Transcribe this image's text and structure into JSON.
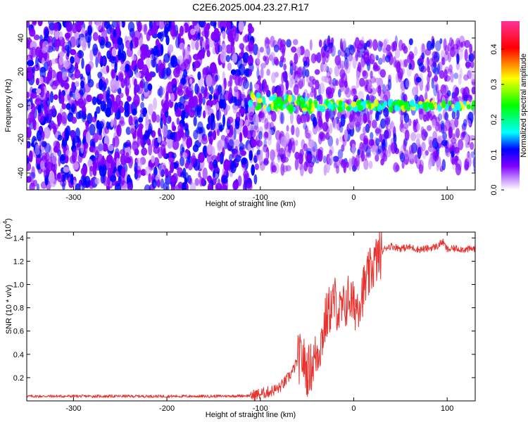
{
  "chart_data": [
    {
      "type": "heatmap",
      "title": "C2E6.2025.004.23.27.R17",
      "xlabel": "Height of straight line (km)",
      "ylabel": "Frequency (Hz)",
      "xlim": [
        -350,
        130
      ],
      "ylim": [
        -50,
        50
      ],
      "xticks": [
        -300,
        -200,
        -100,
        0,
        100
      ],
      "yticks": [
        -40,
        -20,
        0,
        20,
        40
      ],
      "colorbar": {
        "label": "Normalized spectral amplitude",
        "range": [
          0.0,
          0.48
        ],
        "ticks": [
          0.0,
          0.1,
          0.2,
          0.3,
          0.4
        ],
        "colors": [
          "#ffffff",
          "#cc99ff",
          "#7f00ff",
          "#0000ff",
          "#00ffff",
          "#00ff00",
          "#ffff00",
          "#ff0000",
          "#ff3399"
        ]
      },
      "regions": [
        {
          "x": [
            -350,
            -105
          ],
          "freq": [
            -50,
            50
          ],
          "amplitude": 0.06
        },
        {
          "x": [
            -105,
            130
          ],
          "freq": [
            -35,
            35
          ],
          "amplitude": 0.05
        },
        {
          "x": [
            -105,
            130
          ],
          "freq_center": 0,
          "freq_width": 6,
          "amplitude": 0.25
        }
      ]
    },
    {
      "type": "line",
      "title": "",
      "xlabel": "Height of straight line (km)",
      "ylabel": "SNR (10 * v/v)",
      "yscale_label": "(x10",
      "yscale_exponent": "4",
      "xlim": [
        -350,
        130
      ],
      "ylim": [
        0,
        14500
      ],
      "xticks": [
        -300,
        -200,
        -100,
        0,
        100
      ],
      "yticks": [
        2000,
        4000,
        6000,
        8000,
        10000,
        12000,
        14000
      ],
      "ytick_labels": [
        "0.2",
        "0.4",
        "0.6",
        "0.8",
        "1.0",
        "1.2",
        "1.4"
      ],
      "series": [
        {
          "name": "SNR",
          "color": "#e8322e",
          "x": [
            -350,
            -300,
            -250,
            -200,
            -150,
            -110,
            -100,
            -90,
            -80,
            -75,
            -70,
            -65,
            -60,
            -55,
            -50,
            -45,
            -40,
            -35,
            -30,
            -25,
            -20,
            -15,
            -10,
            -5,
            0,
            5,
            10,
            15,
            20,
            25,
            30,
            35,
            40,
            50,
            60,
            70,
            80,
            90,
            95,
            100,
            110,
            120,
            130
          ],
          "values": [
            400,
            400,
            400,
            400,
            400,
            450,
            600,
            800,
            1100,
            1500,
            2000,
            2600,
            3500,
            3800,
            2500,
            3000,
            4000,
            5000,
            7000,
            8000,
            8600,
            7500,
            8000,
            9000,
            8000,
            8500,
            9500,
            10500,
            11500,
            12200,
            12800,
            13200,
            13300,
            13100,
            13200,
            13000,
            13100,
            13300,
            13700,
            13000,
            13100,
            13000,
            13100
          ]
        }
      ]
    }
  ]
}
